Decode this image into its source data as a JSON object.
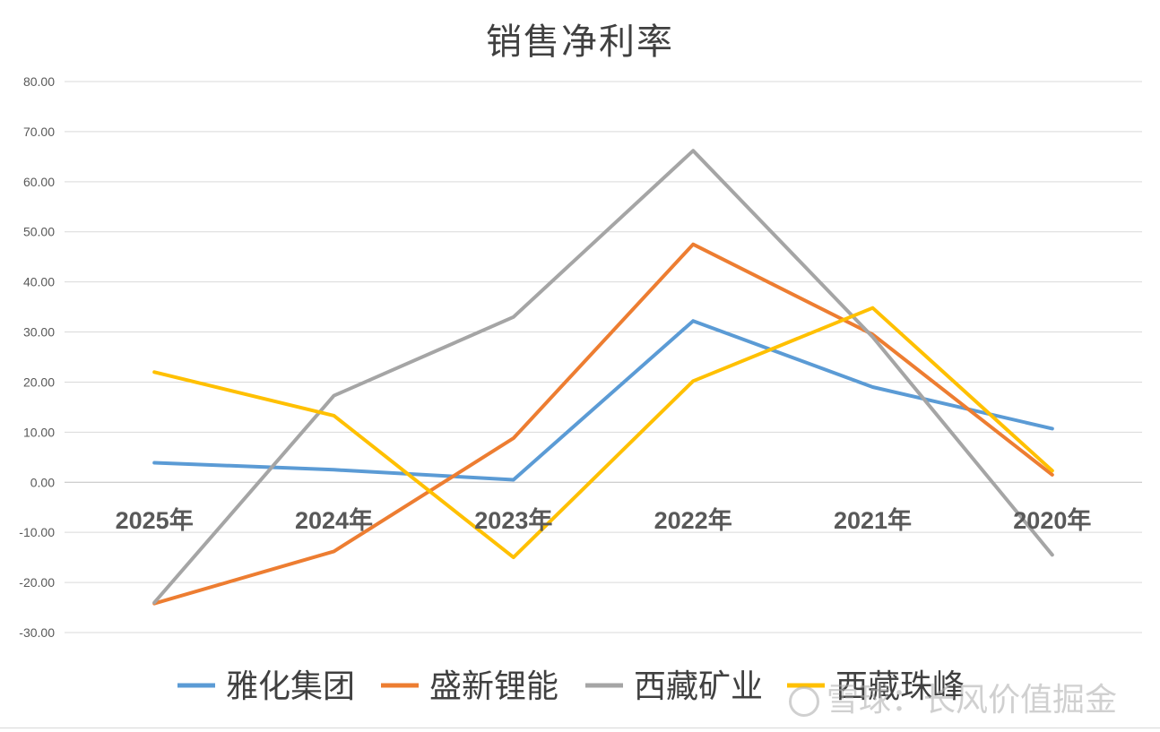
{
  "chart_data": {
    "type": "line",
    "title": "销售净利率",
    "xlabel": "",
    "ylabel": "",
    "categories": [
      "2025年",
      "2024年",
      "2023年",
      "2022年",
      "2021年",
      "2020年"
    ],
    "y_ticks": [
      "80.00",
      "70.00",
      "60.00",
      "50.00",
      "40.00",
      "30.00",
      "20.00",
      "10.00",
      "0.00",
      "-10.00",
      "-20.00",
      "-30.00"
    ],
    "ylim": [
      -30,
      80
    ],
    "grid": true,
    "legend_position": "bottom",
    "series": [
      {
        "name": "雅化集团",
        "color": "#5B9BD5",
        "values": [
          3.9,
          2.5,
          0.5,
          32.2,
          19.0,
          10.7
        ]
      },
      {
        "name": "盛新锂能",
        "color": "#ED7D31",
        "values": [
          -24.2,
          -13.8,
          8.8,
          47.5,
          29.5,
          1.5
        ]
      },
      {
        "name": "西藏矿业",
        "color": "#A5A5A5",
        "values": [
          -24.0,
          17.3,
          33.0,
          66.2,
          29.0,
          -14.5
        ]
      },
      {
        "name": "西藏珠峰",
        "color": "#FFC000",
        "values": [
          22.0,
          13.3,
          -15.0,
          20.2,
          34.8,
          2.3
        ]
      }
    ]
  },
  "watermark": {
    "text": "雪球：长风价值掘金"
  }
}
